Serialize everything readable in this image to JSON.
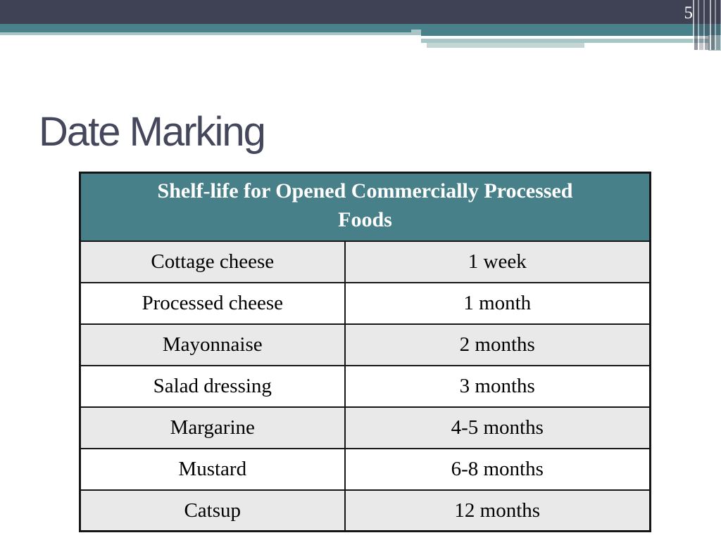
{
  "page_number": "5",
  "title": "Date Marking",
  "table": {
    "header": "Shelf-life for Opened Commercially Processed Foods",
    "rows": [
      {
        "food": "Cottage cheese",
        "shelf_life": "1 week"
      },
      {
        "food": "Processed cheese",
        "shelf_life": "1 month"
      },
      {
        "food": "Mayonnaise",
        "shelf_life": "2 months"
      },
      {
        "food": "Salad dressing",
        "shelf_life": "3 months"
      },
      {
        "food": "Margarine",
        "shelf_life": "4-5 months"
      },
      {
        "food": "Mustard",
        "shelf_life": "6-8 months"
      },
      {
        "food": "Catsup",
        "shelf_life": "12 months"
      }
    ]
  },
  "colors": {
    "top_bar": "#3F4254",
    "teal": "#48818A",
    "sage": "#A9C6C6",
    "table_header_bg": "#488089",
    "alt_row_bg": "#E9E9EA",
    "border": "#161616",
    "title_color": "#45485C"
  }
}
